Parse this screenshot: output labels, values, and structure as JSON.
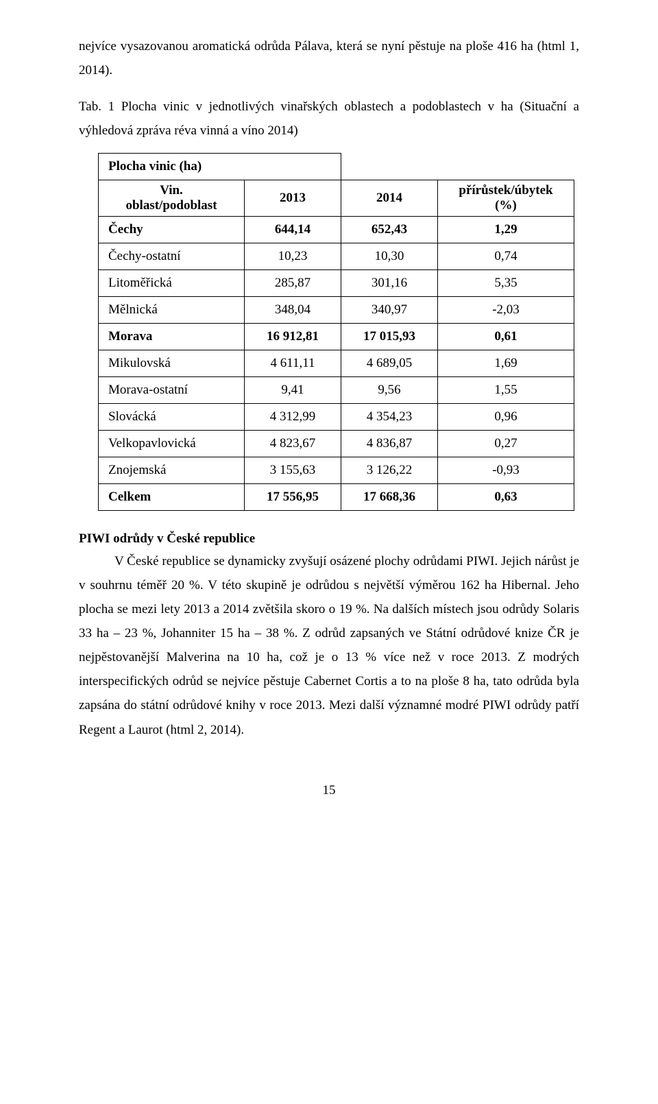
{
  "top_paragraph": "nejvíce vysazovanou aromatická odrůda Pálava, která se nyní pěstuje na ploše 416 ha (html 1, 2014).",
  "table_caption": "Tab. 1 Plocha vinic v jednotlivých vinařských oblastech a podoblastech v ha (Situační a výhledová zpráva réva vinná a víno 2014)",
  "table": {
    "top_header": "Plocha vinic (ha)",
    "header_col0_line1": "Vin.",
    "header_col0_line2": "oblast/podoblast",
    "header_col1": "2013",
    "header_col2": "2014",
    "header_col3_line1": "přírůstek/úbytek",
    "header_col3_line2": "(%)",
    "rows": [
      {
        "label": "Čechy",
        "c2013": "644,14",
        "c2014": "652,43",
        "delta": "1,29",
        "bold": true
      },
      {
        "label": "Čechy-ostatní",
        "c2013": "10,23",
        "c2014": "10,30",
        "delta": "0,74",
        "bold": false
      },
      {
        "label": "Litoměřická",
        "c2013": "285,87",
        "c2014": "301,16",
        "delta": "5,35",
        "bold": false
      },
      {
        "label": "Mělnická",
        "c2013": "348,04",
        "c2014": "340,97",
        "delta": "-2,03",
        "bold": false
      },
      {
        "label": "Morava",
        "c2013": "16 912,81",
        "c2014": "17 015,93",
        "delta": "0,61",
        "bold": true
      },
      {
        "label": "Mikulovská",
        "c2013": "4 611,11",
        "c2014": "4 689,05",
        "delta": "1,69",
        "bold": false
      },
      {
        "label": "Morava-ostatní",
        "c2013": "9,41",
        "c2014": "9,56",
        "delta": "1,55",
        "bold": false
      },
      {
        "label": "Slovácká",
        "c2013": "4 312,99",
        "c2014": "4 354,23",
        "delta": "0,96",
        "bold": false
      },
      {
        "label": "Velkopavlovická",
        "c2013": "4 823,67",
        "c2014": "4 836,87",
        "delta": "0,27",
        "bold": false
      },
      {
        "label": "Znojemská",
        "c2013": "3 155,63",
        "c2014": "3 126,22",
        "delta": "-0,93",
        "bold": false
      },
      {
        "label": "Celkem",
        "c2013": "17 556,95",
        "c2014": "17 668,36",
        "delta": "0,63",
        "bold": true
      }
    ]
  },
  "section_title": "PIWI odrůdy v České republice",
  "body_paragraph": "V České republice se dynamicky zvyšují osázené plochy odrůdami PIWI. Jejich nárůst je v souhrnu téměř 20 %. V této skupině je odrůdou s největší výměrou 162 ha Hibernal. Jeho plocha se mezi lety 2013 a 2014 zvětšila skoro o 19 %. Na dalších místech jsou odrůdy Solaris 33 ha – 23 %, Johanniter 15 ha – 38 %. Z odrůd zapsaných ve Státní odrůdové knize ČR je nejpěstovanější Malverina na 10 ha, což je o 13 % více než v roce 2013. Z modrých interspecifických odrůd se nejvíce pěstuje Cabernet Cortis a to na ploše 8 ha, tato odrůda byla zapsána do státní odrůdové knihy v roce 2013. Mezi další významné modré PIWI odrůdy patří Regent a Laurot (html 2, 2014).",
  "page_number": "15"
}
